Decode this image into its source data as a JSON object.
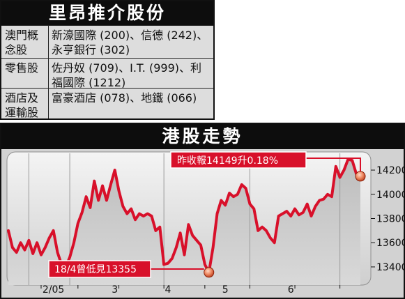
{
  "table": {
    "title": "里昂推介股份",
    "rows": [
      {
        "category": "澳門概念股",
        "stocks": "新濠國際 (200)、信德 (242)、永亨銀行 (302)"
      },
      {
        "category": "零售股",
        "stocks": "佐丹奴 (709)、I.T. (999)、利福國際 (1212)"
      },
      {
        "category": "酒店及運輸股",
        "stocks": "富豪酒店 (078)、地鐵 (066)"
      }
    ]
  },
  "chart_data": {
    "type": "line",
    "title": "港股走勢",
    "xlabel": "",
    "ylabel": "",
    "ylim": [
      13250,
      14350
    ],
    "yticks": [
      "13400",
      "13600",
      "13800",
      "14000",
      "14200"
    ],
    "xticks": [
      "2/05",
      "3",
      "4",
      "5",
      "6"
    ],
    "grid": false,
    "series": [
      {
        "values": [
          13700,
          13560,
          13520,
          13600,
          13540,
          13620,
          13510,
          13600,
          13500,
          13560,
          13640,
          13700,
          13520,
          13420,
          13400,
          13480,
          13600,
          13760,
          13850,
          13980,
          13890,
          14110,
          13950,
          14070,
          13950,
          14080,
          14200,
          14030,
          13900,
          13840,
          13880,
          13790,
          13840,
          13820,
          13840,
          13820,
          13700,
          13730,
          13420,
          13430,
          13470,
          13560,
          13680,
          13500,
          13750,
          13660,
          13620,
          13580,
          13420,
          13355,
          13560,
          13840,
          13950,
          13910,
          14010,
          13980,
          14000,
          14080,
          14050,
          13920,
          13880,
          13700,
          13730,
          13700,
          13640,
          13600,
          13820,
          13840,
          13860,
          13820,
          13880,
          13830,
          13850,
          13920,
          13820,
          13900,
          13950,
          13960,
          14000,
          13980,
          14230,
          14140,
          14200,
          14290,
          14280,
          14170,
          14149
        ]
      }
    ],
    "annotations": [
      {
        "label": "昨收報14149升0.18%"
      },
      {
        "label": "18/4曾低見13355"
      }
    ]
  }
}
